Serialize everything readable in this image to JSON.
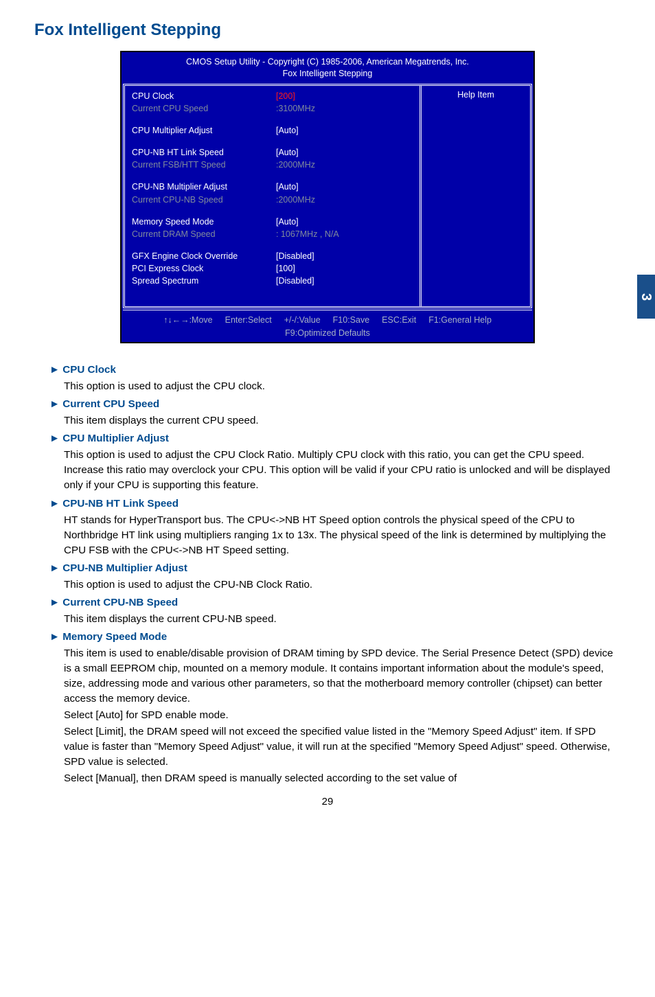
{
  "page": {
    "title": "Fox Intelligent Stepping",
    "sideTab": "3",
    "pageNumber": "29"
  },
  "bios": {
    "header1": "CMOS Setup Utility - Copyright (C) 1985-2006, American Megatrends, Inc.",
    "header2": "Fox Intelligent Stepping",
    "helpTitle": "Help Item",
    "rows": {
      "cpuClock": {
        "label": "CPU Clock",
        "value": "[200]"
      },
      "curCpuSpeed": {
        "label": "Current CPU Speed",
        "value": ":3100MHz"
      },
      "cpuMultAdj": {
        "label": "CPU Multiplier Adjust",
        "value": "[Auto]"
      },
      "cpuNbHt": {
        "label": "CPU-NB HT Link Speed",
        "value": "[Auto]"
      },
      "curFsbHtt": {
        "label": "Current FSB/HTT Speed",
        "value": ":2000MHz"
      },
      "cpuNbMultAdj": {
        "label": "CPU-NB Multiplier Adjust",
        "value": "[Auto]"
      },
      "curCpuNb": {
        "label": "Current CPU-NB Speed",
        "value": ":2000MHz"
      },
      "memSpeedMode": {
        "label": "Memory Speed Mode",
        "value": "[Auto]"
      },
      "curDram": {
        "label": "Current DRAM Speed",
        "value": ": 1067MHz , N/A"
      },
      "gfxOverride": {
        "label": "GFX Engine Clock Override",
        "value": "[Disabled]"
      },
      "pciExpress": {
        "label": "PCI Express Clock",
        "value": "[100]"
      },
      "spreadSpec": {
        "label": "Spread Spectrum",
        "value": "[Disabled]"
      }
    },
    "footer": {
      "move": "↑↓←→:Move",
      "enter": "Enter:Select",
      "value": "+/-/:Value",
      "save": "F10:Save",
      "exit": "ESC:Exit",
      "help": "F1:General Help",
      "defaults": "F9:Optimized Defaults"
    }
  },
  "descriptions": {
    "cpuClock": {
      "title": "► CPU Clock",
      "body": "This option is used to adjust the CPU clock."
    },
    "curCpuSpeed": {
      "title": "► Current CPU Speed",
      "body": "This item displays the current CPU speed."
    },
    "cpuMultAdj": {
      "title": "► CPU Multiplier Adjust",
      "body": "This option is used to adjust the CPU Clock Ratio. Multiply CPU clock with this ratio, you can get the CPU speed. Increase this ratio may overclock your CPU. This option will be valid if your CPU ratio is unlocked and will be displayed only if your CPU is supporting this feature."
    },
    "cpuNbHt": {
      "title": "► CPU-NB HT Link Speed",
      "body": "HT stands for HyperTransport bus. The CPU<->NB HT Speed option controls the physical speed of the CPU to Northbridge HT link using multipliers ranging 1x to 13x. The physical speed of the link is determined by multiplying the CPU FSB with the CPU<->NB HT Speed setting."
    },
    "cpuNbMultAdj": {
      "title": "► CPU-NB Multiplier Adjust",
      "body": "This option is used to adjust the CPU-NB Clock Ratio."
    },
    "curCpuNb": {
      "title": "► Current CPU-NB Speed",
      "body": "This item displays the current CPU-NB speed."
    },
    "memSpeedMode": {
      "title": "► Memory Speed Mode",
      "body1": "This item is used to enable/disable provision of DRAM timing by SPD device. The Serial Presence Detect (SPD) device is a small EEPROM chip, mounted on a memory module. It contains important information about the module's speed, size, addressing mode and various other parameters, so that the motherboard memory controller (chipset) can better access the memory device.",
      "body2": "Select [Auto] for SPD enable mode.",
      "body3": "Select [Limit], the DRAM speed will not exceed the specified value listed in the \"Memory Speed Adjust\" item. If SPD value is faster than \"Memory Speed Adjust\" value, it will run at the specified \"Memory Speed Adjust\" speed. Otherwise, SPD value is selected.",
      "body4": "Select [Manual], then DRAM speed is manually selected according to the set value of"
    }
  }
}
